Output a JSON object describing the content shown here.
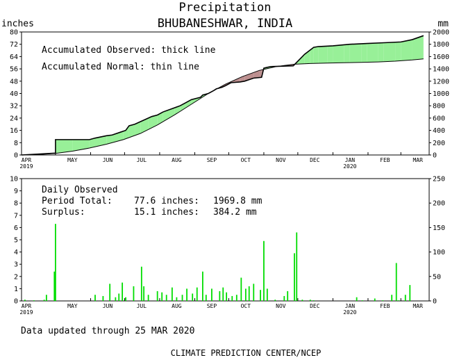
{
  "title": "Precipitation",
  "subtitle": "BHUBANESHWAR, INDIA",
  "footer": {
    "updated": "Data updated through 25 MAR 2020",
    "credit": "CLIMATE PREDICTION CENTER/NCEP"
  },
  "chart_data": [
    {
      "type": "area",
      "unit_left": "inches",
      "unit_right": "mm",
      "legend": [
        "Accumulated Observed: thick line",
        "Accumulated Normal: thin line"
      ],
      "months": [
        "APR",
        "MAY",
        "JUN",
        "JUL",
        "AUG",
        "SEP",
        "OCT",
        "NOV",
        "DEC",
        "JAN",
        "FEB",
        "MAR"
      ],
      "year_labels": [
        {
          "month": "APR",
          "year": "2019"
        },
        {
          "month": "JAN",
          "year": "2020"
        }
      ],
      "ylim_left": [
        0,
        80
      ],
      "yticks_left": [
        0,
        8,
        16,
        24,
        32,
        40,
        48,
        56,
        64,
        72,
        80
      ],
      "ylim_right": [
        0,
        2000
      ],
      "yticks_right": [
        0,
        200,
        400,
        600,
        800,
        1000,
        1200,
        1400,
        1600,
        1800,
        2000
      ],
      "surplus_color": "#98f098",
      "deficit_color": "#bc8f8f",
      "series": [
        {
          "name": "Accumulated Observed",
          "x": [
            0,
            30,
            30,
            60,
            65,
            75,
            80,
            88,
            92,
            95,
            100,
            112,
            115,
            120,
            125,
            140,
            145,
            150,
            158,
            160,
            165,
            170,
            172,
            177,
            180,
            185,
            193,
            197,
            205,
            212,
            214,
            220,
            240,
            250,
            258,
            262,
            275,
            290,
            305,
            320,
            335,
            345,
            355
          ],
          "y": [
            0,
            1.2,
            10,
            10,
            11,
            12.5,
            13,
            15,
            16,
            19,
            20,
            24,
            25,
            26,
            28,
            32,
            34,
            36,
            37.5,
            39,
            40,
            42,
            43,
            44,
            45,
            47,
            47.5,
            48,
            50,
            50.5,
            56.5,
            57.5,
            58,
            65.5,
            70,
            70.5,
            71,
            72,
            72.5,
            73,
            73.5,
            75,
            77.6
          ]
        },
        {
          "name": "Accumulated Normal",
          "x": [
            0,
            15,
            30,
            45,
            60,
            75,
            90,
            105,
            120,
            135,
            150,
            165,
            180,
            195,
            210,
            225,
            240,
            255,
            270,
            285,
            300,
            315,
            330,
            345,
            355
          ],
          "y": [
            0,
            0.3,
            1.0,
            2.5,
            4.5,
            7.0,
            10.0,
            14.0,
            19.5,
            26.0,
            33.0,
            40.0,
            46.0,
            51.0,
            55.0,
            57.5,
            59.0,
            59.5,
            59.8,
            60.0,
            60.2,
            60.5,
            61.0,
            61.8,
            62.5
          ]
        }
      ]
    },
    {
      "type": "bar",
      "name": "Daily Observed",
      "ylim_left": [
        0,
        10
      ],
      "yticks_left": [
        0,
        1,
        2,
        3,
        4,
        5,
        6,
        7,
        8,
        9,
        10
      ],
      "ylim_right": [
        0,
        250
      ],
      "yticks_right": [
        0,
        50,
        100,
        150,
        200,
        250
      ],
      "bar_color": "#00dd00",
      "summary": {
        "title": "Daily Observed",
        "period_label": "Period Total:",
        "period_inches": "77.6 inches:",
        "period_mm": "1969.8 mm",
        "surplus_label": "Surplus:",
        "surplus_inches": "15.1 inches:",
        "surplus_mm": "384.2 mm"
      },
      "days": [
        3,
        11,
        20,
        22,
        29,
        30,
        65,
        72,
        78,
        83,
        86,
        89,
        92,
        99,
        106,
        108,
        112,
        120,
        124,
        128,
        133,
        137,
        142,
        146,
        151,
        155,
        160,
        163,
        168,
        175,
        178,
        181,
        186,
        190,
        194,
        198,
        201,
        205,
        211,
        214,
        217,
        224,
        232,
        235,
        241,
        243,
        248,
        255,
        258,
        296,
        301,
        312,
        319,
        327,
        331,
        333,
        339,
        343
      ],
      "values": [
        0.1,
        0.05,
        0.1,
        0.5,
        2.4,
        6.3,
        0.5,
        0.4,
        1.4,
        0.3,
        0.6,
        1.5,
        0.3,
        1.2,
        2.8,
        1.2,
        0.5,
        0.8,
        0.7,
        0.5,
        1.1,
        0.3,
        0.5,
        1.0,
        0.6,
        1.1,
        2.4,
        0.5,
        1.0,
        0.8,
        1.1,
        0.7,
        0.4,
        0.5,
        1.9,
        1.0,
        1.2,
        1.4,
        0.9,
        4.9,
        1.0,
        0.1,
        0.4,
        0.8,
        3.9,
        5.6,
        0.1,
        0.1,
        0.05,
        0.3,
        0.05,
        0.2,
        0.05,
        0.5,
        3.1,
        0.05,
        0.5,
        1.3
      ]
    }
  ]
}
